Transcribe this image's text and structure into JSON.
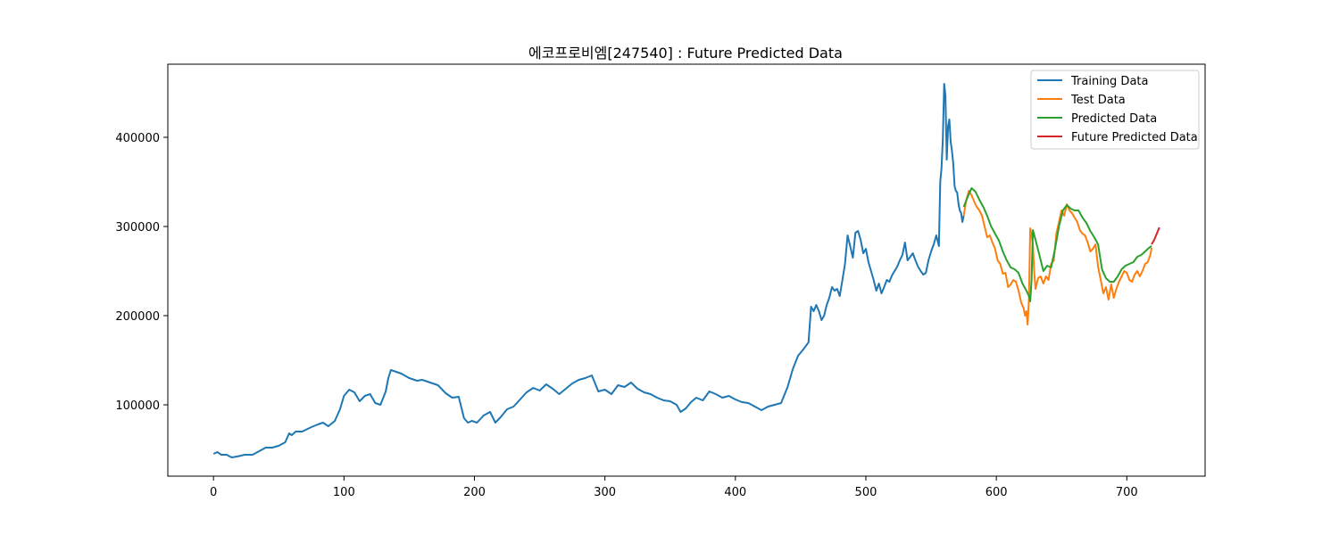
{
  "chart_data": {
    "type": "line",
    "title": "에코프로비엠[247540] : Future Predicted Data",
    "xlabel": "",
    "ylabel": "",
    "xlim": [
      -35,
      760
    ],
    "ylim": [
      20000,
      482000
    ],
    "xticks": [
      0,
      100,
      200,
      300,
      400,
      500,
      600,
      700
    ],
    "yticks": [
      100000,
      200000,
      300000,
      400000
    ],
    "grid": false,
    "legend_position": "top-right",
    "series": [
      {
        "name": "Training Data",
        "color": "#1f77b4",
        "x": [
          0,
          3,
          6,
          10,
          14,
          18,
          24,
          30,
          35,
          40,
          45,
          50,
          55,
          58,
          60,
          63,
          68,
          75,
          80,
          84,
          88,
          93,
          97,
          100,
          104,
          108,
          112,
          116,
          120,
          124,
          128,
          132,
          134,
          136,
          140,
          144,
          150,
          156,
          160,
          166,
          172,
          178,
          183,
          188,
          192,
          195,
          198,
          202,
          207,
          212,
          216,
          220,
          225,
          230,
          235,
          240,
          245,
          250,
          255,
          260,
          265,
          270,
          275,
          280,
          285,
          290,
          295,
          300,
          305,
          310,
          315,
          320,
          325,
          330,
          335,
          340,
          345,
          350,
          355,
          358,
          362,
          366,
          370,
          375,
          380,
          385,
          390,
          395,
          400,
          405,
          410,
          415,
          420,
          425,
          430,
          435,
          440,
          444,
          448,
          452,
          456,
          458,
          460,
          462,
          464,
          466,
          468,
          470,
          472,
          474,
          476,
          478,
          480,
          482,
          484,
          486,
          488,
          490,
          492,
          494,
          496,
          498,
          500,
          502,
          504,
          506,
          508,
          510,
          512,
          514,
          516,
          518,
          520,
          522,
          524,
          526,
          528,
          530,
          532,
          534,
          536,
          538,
          540,
          542,
          544,
          546,
          548,
          550,
          552,
          554,
          556,
          557,
          558,
          559,
          560,
          561,
          562,
          563,
          564,
          565,
          566,
          567,
          568,
          569,
          570,
          571,
          572,
          573,
          574,
          575
        ],
        "y": [
          45000,
          47000,
          44000,
          44000,
          41000,
          42000,
          44000,
          44000,
          48000,
          52000,
          52000,
          54000,
          58000,
          68000,
          66000,
          70000,
          70000,
          75000,
          78000,
          80000,
          76000,
          82000,
          95000,
          110000,
          117000,
          114000,
          104000,
          110000,
          112000,
          102000,
          100000,
          115000,
          130000,
          139000,
          137000,
          135000,
          130000,
          127000,
          128000,
          125000,
          122000,
          113000,
          108000,
          109000,
          85000,
          80000,
          82000,
          80000,
          88000,
          92000,
          80000,
          86000,
          95000,
          98000,
          106000,
          114000,
          119000,
          116000,
          123000,
          118000,
          112000,
          118000,
          124000,
          128000,
          130000,
          133000,
          115000,
          117000,
          112000,
          122000,
          120000,
          125000,
          118000,
          114000,
          112000,
          108000,
          105000,
          104000,
          100000,
          92000,
          96000,
          103000,
          108000,
          105000,
          115000,
          112000,
          108000,
          110000,
          106000,
          103000,
          102000,
          98000,
          94000,
          98000,
          100000,
          102000,
          120000,
          140000,
          155000,
          162000,
          170000,
          210000,
          205000,
          212000,
          205000,
          195000,
          200000,
          212000,
          220000,
          232000,
          228000,
          230000,
          222000,
          240000,
          258000,
          290000,
          278000,
          265000,
          293000,
          295000,
          285000,
          270000,
          275000,
          260000,
          250000,
          240000,
          228000,
          236000,
          225000,
          232000,
          240000,
          238000,
          245000,
          250000,
          255000,
          262000,
          268000,
          282000,
          262000,
          266000,
          270000,
          262000,
          255000,
          250000,
          246000,
          248000,
          262000,
          272000,
          280000,
          290000,
          278000,
          350000,
          365000,
          398000,
          460000,
          447000,
          375000,
          413000,
          420000,
          395000,
          385000,
          370000,
          345000,
          340000,
          338000,
          325000,
          318000,
          315000,
          305000,
          312000
        ]
      },
      {
        "name": "Test Data",
        "color": "#ff7f0e",
        "x": [
          575,
          577,
          579,
          581,
          583,
          585,
          587,
          589,
          591,
          593,
          595,
          597,
          599,
          601,
          603,
          605,
          607,
          609,
          611,
          613,
          615,
          617,
          619,
          621,
          622,
          623,
          624,
          625,
          626,
          627,
          628,
          629,
          630,
          632,
          634,
          636,
          638,
          640,
          642,
          644,
          646,
          648,
          650,
          652,
          654,
          656,
          658,
          660,
          662,
          664,
          666,
          668,
          670,
          672,
          674,
          676,
          678,
          680,
          682,
          684,
          686,
          688,
          690,
          692,
          694,
          696,
          698,
          700,
          702,
          704,
          706,
          708,
          710,
          712,
          714,
          716,
          718,
          719
        ],
        "y": [
          312000,
          330000,
          340000,
          335000,
          328000,
          322000,
          318000,
          312000,
          300000,
          288000,
          290000,
          282000,
          275000,
          262000,
          258000,
          247000,
          248000,
          232000,
          235000,
          240000,
          238000,
          228000,
          215000,
          208000,
          200000,
          205000,
          190000,
          220000,
          298000,
          290000,
          280000,
          250000,
          230000,
          242000,
          244000,
          236000,
          244000,
          240000,
          258000,
          262000,
          292000,
          305000,
          318000,
          312000,
          325000,
          318000,
          315000,
          310000,
          305000,
          296000,
          292000,
          290000,
          282000,
          272000,
          275000,
          280000,
          255000,
          240000,
          225000,
          232000,
          218000,
          235000,
          220000,
          230000,
          238000,
          244000,
          250000,
          248000,
          240000,
          238000,
          246000,
          250000,
          244000,
          250000,
          258000,
          260000,
          268000,
          276000
        ]
      },
      {
        "name": "Predicted Data",
        "color": "#2ca02c",
        "x": [
          575,
          578,
          581,
          584,
          587,
          590,
          593,
          596,
          599,
          602,
          605,
          608,
          611,
          614,
          617,
          620,
          623,
          625,
          626,
          627,
          628,
          630,
          633,
          636,
          639,
          642,
          645,
          648,
          651,
          654,
          657,
          660,
          663,
          666,
          669,
          672,
          675,
          678,
          681,
          684,
          687,
          690,
          693,
          696,
          699,
          702,
          705,
          708,
          711,
          714,
          717,
          719
        ],
        "y": [
          322000,
          333000,
          343000,
          339000,
          330000,
          322000,
          312000,
          300000,
          292000,
          284000,
          272000,
          262000,
          254000,
          252000,
          248000,
          236000,
          228000,
          222000,
          216000,
          240000,
          296000,
          285000,
          268000,
          250000,
          256000,
          254000,
          275000,
          300000,
          318000,
          324000,
          320000,
          318000,
          318000,
          310000,
          304000,
          295000,
          288000,
          280000,
          252000,
          242000,
          238000,
          238000,
          244000,
          252000,
          256000,
          258000,
          260000,
          266000,
          268000,
          272000,
          276000,
          278000
        ]
      },
      {
        "name": "Future Predicted Data",
        "color": "#d62728",
        "x": [
          719,
          721,
          723,
          725
        ],
        "y": [
          280000,
          285000,
          292000,
          299000
        ]
      }
    ]
  }
}
